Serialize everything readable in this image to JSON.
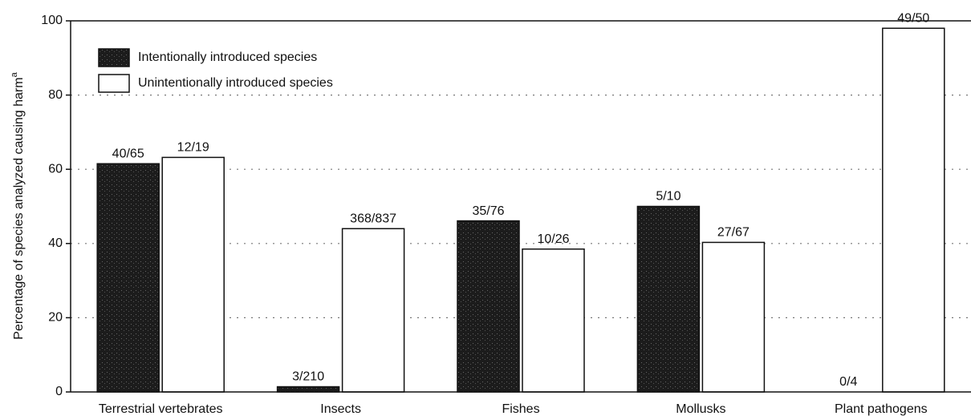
{
  "chart_data": {
    "type": "bar",
    "y_label": "Percentage of species analyzed causing harm",
    "y_label_footnote": "a",
    "categories": [
      "Terrestrial vertebrates",
      "Insects",
      "Fishes",
      "Mollusks",
      "Plant pathogens"
    ],
    "series": [
      {
        "name": "Intentionally introduced species",
        "color": "#1c1c1c",
        "values": [
          61.5,
          1.4,
          46.1,
          50,
          0
        ],
        "value_labels": [
          "40/65",
          "3/210",
          "35/76",
          "5/10",
          "0/4"
        ]
      },
      {
        "name": "Unintentionally introduced species",
        "color": "#ffffff",
        "values": [
          63.2,
          44.0,
          38.5,
          40.3,
          98
        ],
        "value_labels": [
          "12/19",
          "368/837",
          "10/26",
          "27/67",
          "49/50"
        ]
      }
    ],
    "ylim": [
      0,
      100
    ],
    "yticks": [
      0,
      20,
      40,
      60,
      80,
      100
    ],
    "grid": true,
    "legend": "upper left"
  }
}
